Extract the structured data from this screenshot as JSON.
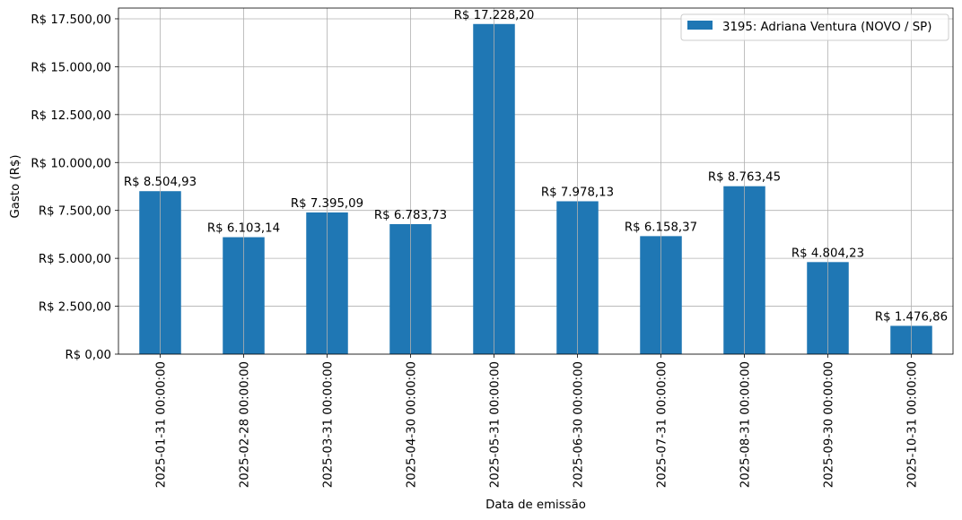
{
  "chart_data": {
    "type": "bar",
    "categories": [
      "2025-01-31 00:00:00",
      "2025-02-28 00:00:00",
      "2025-03-31 00:00:00",
      "2025-04-30 00:00:00",
      "2025-05-31 00:00:00",
      "2025-06-30 00:00:00",
      "2025-07-31 00:00:00",
      "2025-08-31 00:00:00",
      "2025-09-30 00:00:00",
      "2025-10-31 00:00:00"
    ],
    "series": [
      {
        "name": "3195: Adriana Ventura (NOVO / SP)",
        "color": "#1f77b4",
        "values": [
          8504.93,
          6103.14,
          7395.09,
          6783.73,
          17228.2,
          7978.13,
          6158.37,
          8763.45,
          4804.23,
          1476.86
        ],
        "data_labels": [
          "R$ 8.504,93",
          "R$ 6.103,14",
          "R$ 7.395,09",
          "R$ 6.783,73",
          "R$ 17.228,20",
          "R$ 7.978,13",
          "R$ 6.158,37",
          "R$ 8.763,45",
          "R$ 4.804,23",
          "R$ 1.476,86"
        ]
      }
    ],
    "title": "",
    "xlabel": "Data de emissão",
    "ylabel": "Gasto (R$)",
    "ylim": [
      0,
      18060
    ],
    "y_ticks": [
      0,
      2500,
      5000,
      7500,
      10000,
      12500,
      15000,
      17500
    ],
    "y_tick_labels": [
      "R$ 0,00",
      "R$ 2.500,00",
      "R$ 5.000,00",
      "R$ 7.500,00",
      "R$ 10.000,00",
      "R$ 12.500,00",
      "R$ 15.000,00",
      "R$ 17.500,00"
    ],
    "grid": true,
    "legend_position": "top-right"
  }
}
